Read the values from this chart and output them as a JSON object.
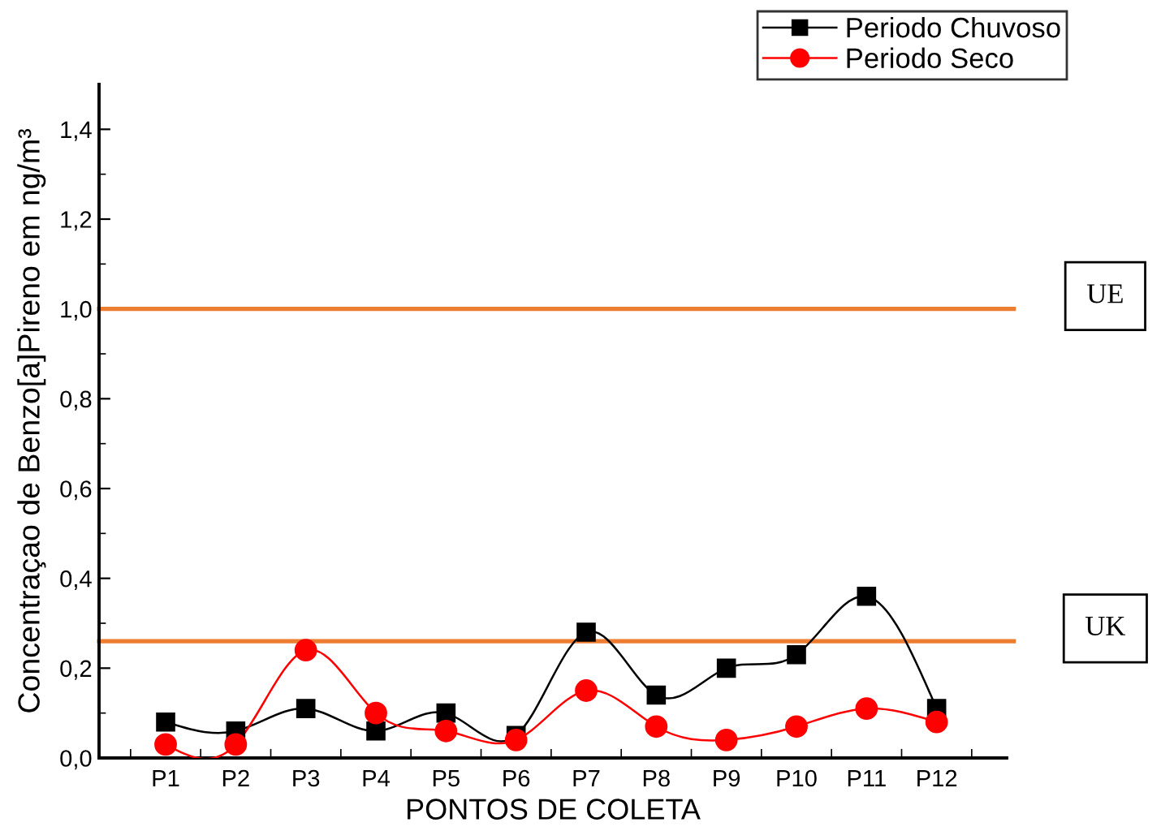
{
  "chart_data": {
    "type": "line",
    "xlabel": "PONTOS DE COLETA",
    "ylabel": "Concentraçao de Benzo[a]Pireno em ng/m³",
    "categories": [
      "P1",
      "P2",
      "P3",
      "P4",
      "P5",
      "P6",
      "P7",
      "P8",
      "P9",
      "P10",
      "P11",
      "P12"
    ],
    "series": [
      {
        "name": "Periodo Chuvoso",
        "color": "#000000",
        "marker": "square",
        "values": [
          0.08,
          0.06,
          0.11,
          0.06,
          0.1,
          0.05,
          0.28,
          0.14,
          0.2,
          0.23,
          0.36,
          0.11
        ]
      },
      {
        "name": "Periodo Seco",
        "color": "#ff0000",
        "marker": "circle",
        "values": [
          0.03,
          0.03,
          0.24,
          0.1,
          0.06,
          0.04,
          0.15,
          0.07,
          0.04,
          0.07,
          0.11,
          0.08
        ]
      }
    ],
    "ylim": [
      0,
      1.5
    ],
    "yticks": [
      {
        "value": 0,
        "label": "0,0"
      },
      {
        "value": 0.2,
        "label": "0,2"
      },
      {
        "value": 0.4,
        "label": "0,4"
      },
      {
        "value": 0.6,
        "label": "0,6"
      },
      {
        "value": 0.8,
        "label": "0,8"
      },
      {
        "value": 1.0,
        "label": "1,0"
      },
      {
        "value": 1.2,
        "label": "1,2"
      },
      {
        "value": 1.4,
        "label": "1,4"
      }
    ],
    "ref_lines": [
      {
        "axis": "y",
        "value": 1.0,
        "label": "UE",
        "color": "#ed7d31"
      },
      {
        "axis": "y",
        "value": 0.26,
        "label": "UK",
        "color": "#ed7d31"
      }
    ],
    "legend": "top right",
    "line_style": "solid"
  }
}
